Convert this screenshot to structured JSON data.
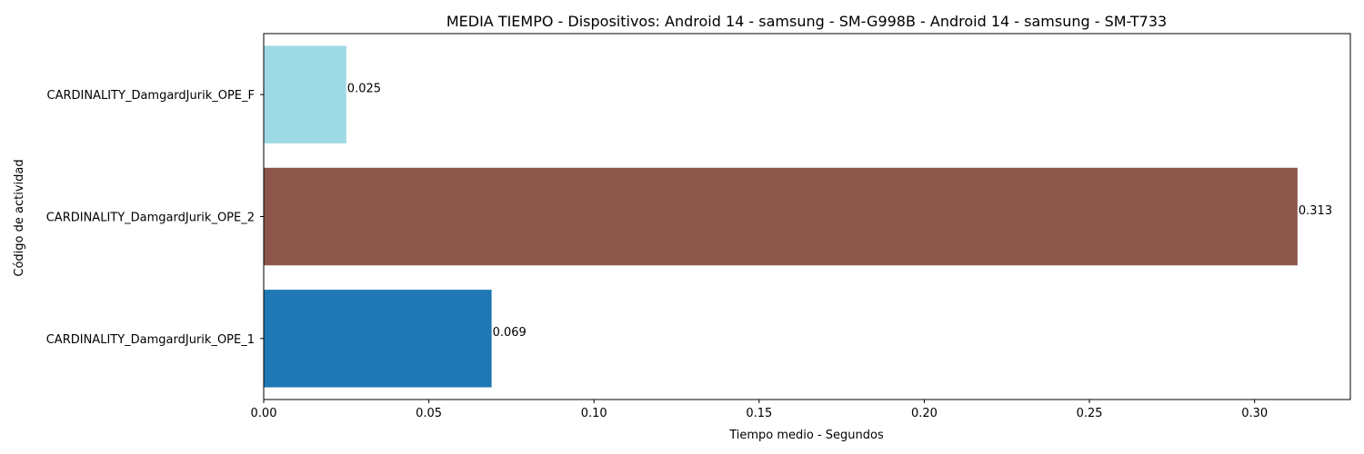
{
  "chart_data": {
    "type": "bar",
    "orientation": "horizontal",
    "title": "MEDIA TIEMPO - Dispositivos: Android 14 - samsung - SM-G998B - Android 14 - samsung - SM-T733",
    "xlabel": "Tiempo medio - Segundos",
    "ylabel": "Código de actividad",
    "categories": [
      "CARDINALITY_DamgardJurik_OPE_1",
      "CARDINALITY_DamgardJurik_OPE_2",
      "CARDINALITY_DamgardJurik_OPE_F"
    ],
    "values": [
      0.069,
      0.313,
      0.025
    ],
    "value_labels": [
      "0.069",
      "0.313",
      "0.025"
    ],
    "colors": [
      "#1f77b4",
      "#8c564b",
      "#9edae5"
    ],
    "xlim": [
      0.0,
      0.329
    ],
    "xticks": [
      0.0,
      0.05,
      0.1,
      0.15,
      0.2,
      0.25,
      0.3
    ],
    "xtick_labels": [
      "0.00",
      "0.05",
      "0.10",
      "0.15",
      "0.20",
      "0.25",
      "0.30"
    ],
    "grid": false,
    "legend": "none"
  }
}
